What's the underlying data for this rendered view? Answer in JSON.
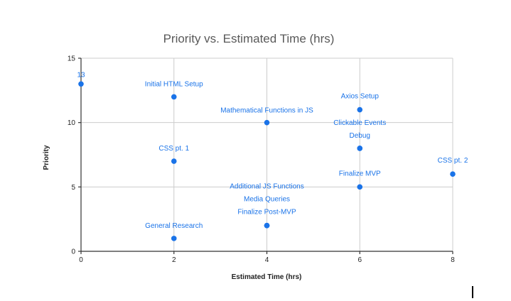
{
  "chart_data": {
    "type": "scatter",
    "title": "Priority vs. Estimated Time (hrs)",
    "xlabel": "Estimated Time (hrs)",
    "ylabel": "Priority",
    "xlim": [
      0,
      8
    ],
    "ylim": [
      0,
      15
    ],
    "x_ticks": [
      0,
      2,
      4,
      6,
      8
    ],
    "y_ticks": [
      0,
      5,
      10,
      15
    ],
    "grid": true,
    "point_color": "#1a73e8",
    "points": [
      {
        "x": 0,
        "y": 13,
        "label": "13"
      },
      {
        "x": 2,
        "y": 12,
        "label": "Initial HTML Setup"
      },
      {
        "x": 2,
        "y": 7,
        "label": "CSS pt. 1"
      },
      {
        "x": 2,
        "y": 1,
        "label": "General Research"
      },
      {
        "x": 4,
        "y": 10,
        "label": "Mathematical Functions in JS"
      },
      {
        "x": 4,
        "y": 2,
        "label": "Additional JS Functions"
      },
      {
        "x": 4,
        "y": 2,
        "label": "Media Queries"
      },
      {
        "x": 4,
        "y": 2,
        "label": "Finalize Post-MVP"
      },
      {
        "x": 6,
        "y": 11,
        "label": "Axios Setup"
      },
      {
        "x": 6,
        "y": 8,
        "label": "Clickable Events"
      },
      {
        "x": 6,
        "y": 8,
        "label": "Debug"
      },
      {
        "x": 6,
        "y": 5,
        "label": "Finalize MVP"
      },
      {
        "x": 8,
        "y": 6,
        "label": "CSS pt. 2"
      }
    ]
  }
}
